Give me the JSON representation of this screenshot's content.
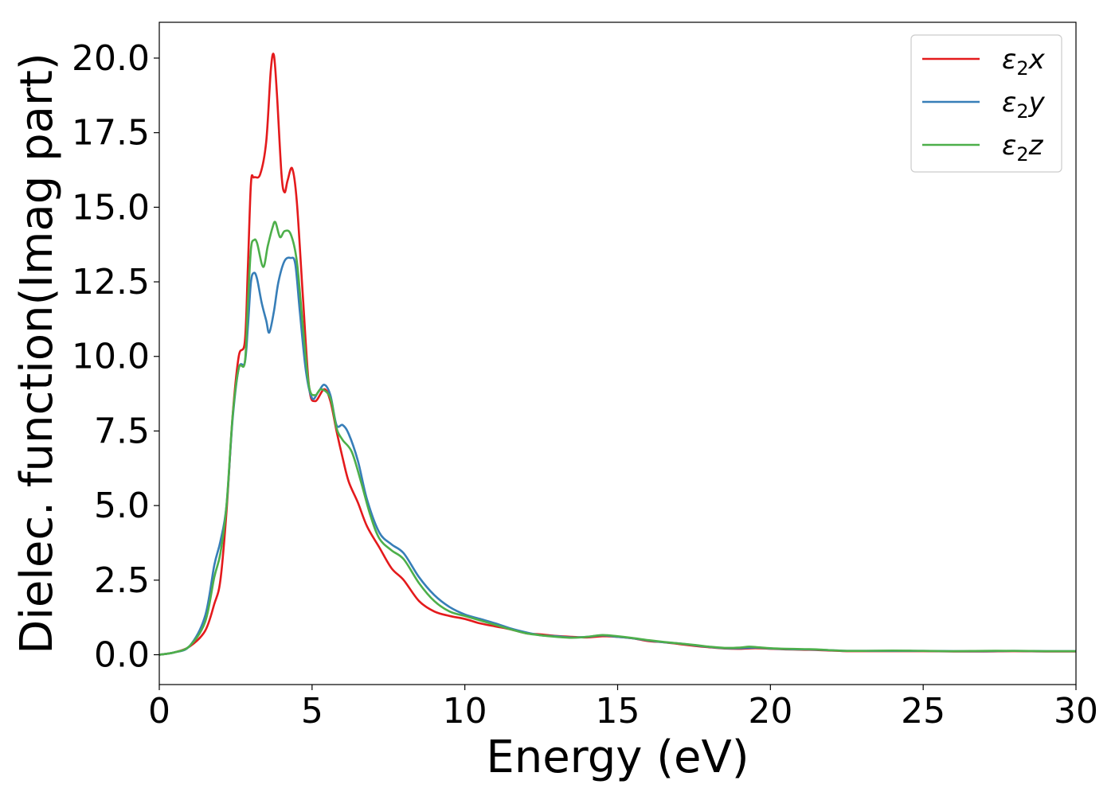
{
  "chart_data": {
    "type": "line",
    "xlabel": "Energy (eV)",
    "ylabel": "Dielec. function(Imag part)",
    "xlim": [
      0,
      30
    ],
    "ylim": [
      -1.0,
      21.2
    ],
    "xticks": [
      0,
      5,
      10,
      15,
      20,
      25,
      30
    ],
    "xtick_labels": [
      "0",
      "5",
      "10",
      "15",
      "20",
      "25",
      "30"
    ],
    "yticks": [
      0.0,
      2.5,
      5.0,
      7.5,
      10.0,
      12.5,
      15.0,
      17.5,
      20.0
    ],
    "ytick_labels": [
      "0.0",
      "2.5",
      "5.0",
      "7.5",
      "10.0",
      "12.5",
      "15.0",
      "17.5",
      "20.0"
    ],
    "grid": false,
    "legend_position": "top-right",
    "series": [
      {
        "name": "ε2x",
        "label_base": "ε",
        "label_sub": "2",
        "label_var": "x",
        "color": "#e41a1c",
        "points": [
          [
            0,
            0.0
          ],
          [
            0.5,
            0.08
          ],
          [
            1.0,
            0.28
          ],
          [
            1.5,
            0.8
          ],
          [
            1.8,
            1.7
          ],
          [
            2.0,
            2.5
          ],
          [
            2.2,
            4.8
          ],
          [
            2.4,
            8.0
          ],
          [
            2.6,
            10.0
          ],
          [
            2.8,
            10.5
          ],
          [
            2.9,
            13.0
          ],
          [
            3.0,
            15.8
          ],
          [
            3.1,
            16.0
          ],
          [
            3.3,
            16.1
          ],
          [
            3.5,
            17.2
          ],
          [
            3.65,
            19.6
          ],
          [
            3.75,
            20.1
          ],
          [
            3.85,
            18.8
          ],
          [
            4.0,
            16.1
          ],
          [
            4.1,
            15.5
          ],
          [
            4.2,
            15.9
          ],
          [
            4.35,
            16.3
          ],
          [
            4.5,
            15.2
          ],
          [
            4.7,
            12.0
          ],
          [
            4.9,
            9.0
          ],
          [
            5.1,
            8.5
          ],
          [
            5.4,
            8.9
          ],
          [
            5.6,
            8.5
          ],
          [
            5.8,
            7.5
          ],
          [
            6.0,
            6.6
          ],
          [
            6.2,
            5.8
          ],
          [
            6.5,
            5.1
          ],
          [
            6.8,
            4.3
          ],
          [
            7.2,
            3.6
          ],
          [
            7.6,
            2.9
          ],
          [
            8.0,
            2.5
          ],
          [
            8.5,
            1.8
          ],
          [
            9.0,
            1.45
          ],
          [
            9.5,
            1.3
          ],
          [
            10.0,
            1.2
          ],
          [
            10.5,
            1.05
          ],
          [
            11.0,
            0.95
          ],
          [
            11.5,
            0.85
          ],
          [
            12.0,
            0.72
          ],
          [
            12.5,
            0.68
          ],
          [
            13.0,
            0.63
          ],
          [
            13.5,
            0.6
          ],
          [
            14.0,
            0.58
          ],
          [
            14.5,
            0.62
          ],
          [
            15.0,
            0.6
          ],
          [
            15.5,
            0.55
          ],
          [
            16.0,
            0.46
          ],
          [
            16.5,
            0.42
          ],
          [
            17.0,
            0.36
          ],
          [
            17.5,
            0.3
          ],
          [
            18.0,
            0.25
          ],
          [
            18.5,
            0.21
          ],
          [
            19.0,
            0.2
          ],
          [
            19.5,
            0.22
          ],
          [
            20.0,
            0.2
          ],
          [
            20.5,
            0.18
          ],
          [
            21.0,
            0.17
          ],
          [
            21.5,
            0.16
          ],
          [
            22.0,
            0.14
          ],
          [
            22.5,
            0.12
          ],
          [
            23.0,
            0.12
          ],
          [
            24.0,
            0.12
          ],
          [
            25.0,
            0.12
          ],
          [
            26.0,
            0.11
          ],
          [
            27.0,
            0.11
          ],
          [
            28.0,
            0.12
          ],
          [
            29.0,
            0.11
          ],
          [
            30.0,
            0.11
          ]
        ]
      },
      {
        "name": "ε2y",
        "label_base": "ε",
        "label_sub": "2",
        "label_var": "y",
        "color": "#377eb8",
        "points": [
          [
            0,
            0.0
          ],
          [
            0.5,
            0.08
          ],
          [
            1.0,
            0.3
          ],
          [
            1.5,
            1.3
          ],
          [
            1.8,
            3.0
          ],
          [
            2.0,
            3.8
          ],
          [
            2.2,
            5.0
          ],
          [
            2.4,
            7.9
          ],
          [
            2.6,
            9.6
          ],
          [
            2.8,
            9.8
          ],
          [
            2.9,
            11.0
          ],
          [
            3.0,
            12.5
          ],
          [
            3.1,
            12.8
          ],
          [
            3.2,
            12.6
          ],
          [
            3.35,
            11.8
          ],
          [
            3.5,
            11.2
          ],
          [
            3.6,
            10.8
          ],
          [
            3.75,
            11.5
          ],
          [
            3.9,
            12.5
          ],
          [
            4.1,
            13.2
          ],
          [
            4.3,
            13.3
          ],
          [
            4.45,
            13.1
          ],
          [
            4.6,
            11.5
          ],
          [
            4.8,
            9.5
          ],
          [
            5.0,
            8.6
          ],
          [
            5.2,
            8.8
          ],
          [
            5.4,
            9.05
          ],
          [
            5.6,
            8.7
          ],
          [
            5.8,
            7.7
          ],
          [
            6.0,
            7.7
          ],
          [
            6.2,
            7.4
          ],
          [
            6.5,
            6.5
          ],
          [
            6.8,
            5.2
          ],
          [
            7.2,
            4.1
          ],
          [
            7.6,
            3.7
          ],
          [
            8.0,
            3.4
          ],
          [
            8.5,
            2.6
          ],
          [
            9.0,
            2.0
          ],
          [
            9.5,
            1.6
          ],
          [
            10.0,
            1.35
          ],
          [
            10.5,
            1.2
          ],
          [
            11.0,
            1.05
          ],
          [
            11.5,
            0.88
          ],
          [
            12.0,
            0.75
          ],
          [
            12.5,
            0.65
          ],
          [
            13.0,
            0.62
          ],
          [
            13.5,
            0.58
          ],
          [
            14.0,
            0.6
          ],
          [
            14.5,
            0.65
          ],
          [
            15.0,
            0.6
          ],
          [
            15.5,
            0.55
          ],
          [
            16.0,
            0.48
          ],
          [
            16.5,
            0.42
          ],
          [
            17.0,
            0.38
          ],
          [
            17.5,
            0.32
          ],
          [
            18.0,
            0.26
          ],
          [
            18.5,
            0.22
          ],
          [
            19.0,
            0.22
          ],
          [
            19.5,
            0.24
          ],
          [
            20.0,
            0.21
          ],
          [
            20.5,
            0.19
          ],
          [
            21.0,
            0.18
          ],
          [
            21.5,
            0.17
          ],
          [
            22.0,
            0.15
          ],
          [
            22.5,
            0.13
          ],
          [
            23.0,
            0.13
          ],
          [
            24.0,
            0.13
          ],
          [
            25.0,
            0.13
          ],
          [
            26.0,
            0.12
          ],
          [
            27.0,
            0.12
          ],
          [
            28.0,
            0.13
          ],
          [
            29.0,
            0.12
          ],
          [
            30.0,
            0.12
          ]
        ]
      },
      {
        "name": "ε2z",
        "label_base": "ε",
        "label_sub": "2",
        "label_var": "z",
        "color": "#4daf4a",
        "points": [
          [
            0,
            0.0
          ],
          [
            0.5,
            0.08
          ],
          [
            1.0,
            0.3
          ],
          [
            1.5,
            1.1
          ],
          [
            1.8,
            2.6
          ],
          [
            2.0,
            3.4
          ],
          [
            2.2,
            5.0
          ],
          [
            2.4,
            8.0
          ],
          [
            2.6,
            9.6
          ],
          [
            2.8,
            9.8
          ],
          [
            2.9,
            11.8
          ],
          [
            3.0,
            13.6
          ],
          [
            3.1,
            13.9
          ],
          [
            3.2,
            13.8
          ],
          [
            3.4,
            13.0
          ],
          [
            3.55,
            13.7
          ],
          [
            3.7,
            14.3
          ],
          [
            3.8,
            14.5
          ],
          [
            3.95,
            14.0
          ],
          [
            4.1,
            14.2
          ],
          [
            4.3,
            14.1
          ],
          [
            4.5,
            13.2
          ],
          [
            4.7,
            11.0
          ],
          [
            4.9,
            9.0
          ],
          [
            5.1,
            8.7
          ],
          [
            5.3,
            8.9
          ],
          [
            5.6,
            8.6
          ],
          [
            5.8,
            7.6
          ],
          [
            6.0,
            7.2
          ],
          [
            6.3,
            6.8
          ],
          [
            6.6,
            5.8
          ],
          [
            6.9,
            4.7
          ],
          [
            7.2,
            3.9
          ],
          [
            7.6,
            3.5
          ],
          [
            8.0,
            3.2
          ],
          [
            8.5,
            2.4
          ],
          [
            9.0,
            1.8
          ],
          [
            9.5,
            1.45
          ],
          [
            10.0,
            1.3
          ],
          [
            10.5,
            1.15
          ],
          [
            11.0,
            1.0
          ],
          [
            11.5,
            0.85
          ],
          [
            12.0,
            0.72
          ],
          [
            12.5,
            0.65
          ],
          [
            13.0,
            0.6
          ],
          [
            13.5,
            0.57
          ],
          [
            14.0,
            0.6
          ],
          [
            14.5,
            0.66
          ],
          [
            15.0,
            0.62
          ],
          [
            15.5,
            0.56
          ],
          [
            16.0,
            0.49
          ],
          [
            16.5,
            0.43
          ],
          [
            17.0,
            0.38
          ],
          [
            17.5,
            0.33
          ],
          [
            18.0,
            0.27
          ],
          [
            18.5,
            0.23
          ],
          [
            19.0,
            0.24
          ],
          [
            19.3,
            0.27
          ],
          [
            19.6,
            0.25
          ],
          [
            20.0,
            0.22
          ],
          [
            20.5,
            0.2
          ],
          [
            21.0,
            0.19
          ],
          [
            21.5,
            0.18
          ],
          [
            22.0,
            0.15
          ],
          [
            22.5,
            0.13
          ],
          [
            23.0,
            0.13
          ],
          [
            24.0,
            0.14
          ],
          [
            25.0,
            0.13
          ],
          [
            26.0,
            0.12
          ],
          [
            27.0,
            0.13
          ],
          [
            28.0,
            0.13
          ],
          [
            29.0,
            0.12
          ],
          [
            30.0,
            0.12
          ]
        ]
      }
    ]
  }
}
